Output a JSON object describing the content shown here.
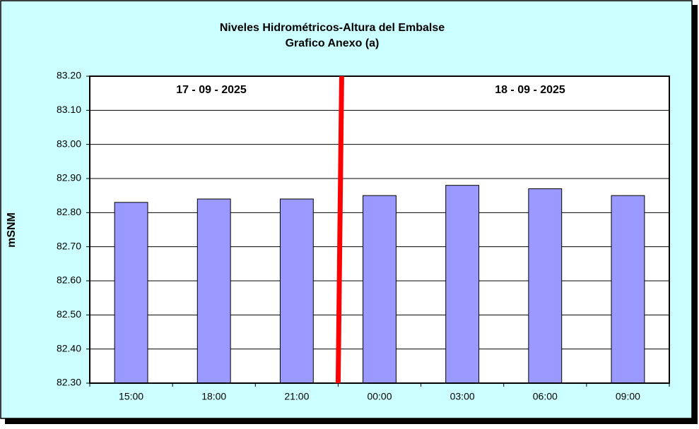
{
  "chart_data": {
    "type": "bar",
    "title": "Niveles Hidrométricos-Altura del Embalse",
    "subtitle": "Grafico Anexo (a)",
    "y_label": "mSNM",
    "annotations": [
      "17 - 09 - 2025",
      "18 - 09 - 2025"
    ],
    "categories": [
      "15:00",
      "18:00",
      "21:00",
      "00:00",
      "03:00",
      "06:00",
      "09:00"
    ],
    "values": [
      82.83,
      82.84,
      82.84,
      82.85,
      82.88,
      82.87,
      82.85
    ],
    "color": "#9999ff",
    "ylim": [
      82.3,
      83.2
    ],
    "yticks": [
      {
        "value": 82.3,
        "label": "82.30"
      },
      {
        "value": 82.4,
        "label": "82.40"
      },
      {
        "value": 82.5,
        "label": "82.50"
      },
      {
        "value": 82.6,
        "label": "82.60"
      },
      {
        "value": 82.7,
        "label": "82.70"
      },
      {
        "value": 82.8,
        "label": "82.80"
      },
      {
        "value": 82.9,
        "label": "82.90"
      },
      {
        "value": 83.0,
        "label": "83.00"
      },
      {
        "value": 83.1,
        "label": "83.10"
      },
      {
        "value": 83.2,
        "label": "83.20"
      }
    ],
    "grid": true
  }
}
